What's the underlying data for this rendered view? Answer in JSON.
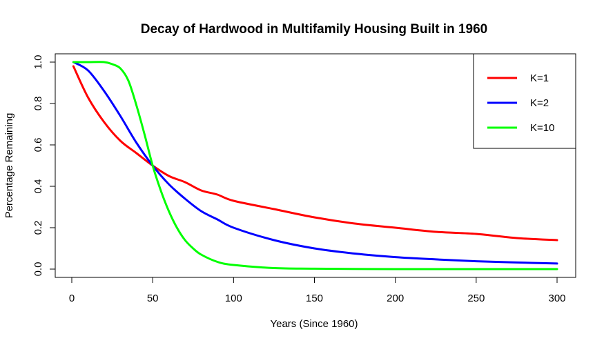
{
  "chart_data": {
    "type": "line",
    "title": "Decay of Hardwood in Multifamily Housing Built in 1960",
    "xlabel": "Years (Since 1960)",
    "ylabel": "Percentage Remaining",
    "xlim": [
      0,
      300
    ],
    "ylim": [
      0,
      1.0
    ],
    "x_ticks": [
      "0",
      "50",
      "100",
      "150",
      "200",
      "250",
      "300"
    ],
    "y_ticks": [
      "0.0",
      "0.2",
      "0.4",
      "0.6",
      "0.8",
      "1.0"
    ],
    "grid": false,
    "legend_position": "top-right",
    "series": [
      {
        "name": "K=1",
        "color": "#ff0000",
        "x": [
          1,
          10,
          20,
          30,
          40,
          50,
          60,
          70,
          80,
          90,
          100,
          125,
          150,
          175,
          200,
          225,
          250,
          275,
          300
        ],
        "y": [
          0.98,
          0.83,
          0.71,
          0.62,
          0.56,
          0.5,
          0.45,
          0.42,
          0.38,
          0.36,
          0.33,
          0.29,
          0.25,
          0.22,
          0.2,
          0.18,
          0.17,
          0.15,
          0.14
        ]
      },
      {
        "name": "K=2",
        "color": "#0000ff",
        "x": [
          1,
          10,
          20,
          30,
          40,
          50,
          60,
          70,
          80,
          90,
          100,
          125,
          150,
          175,
          200,
          225,
          250,
          275,
          300
        ],
        "y": [
          1.0,
          0.96,
          0.86,
          0.74,
          0.61,
          0.5,
          0.41,
          0.34,
          0.28,
          0.24,
          0.2,
          0.14,
          0.1,
          0.075,
          0.058,
          0.047,
          0.038,
          0.032,
          0.027
        ]
      },
      {
        "name": "K=10",
        "color": "#00ff00",
        "x": [
          1,
          10,
          20,
          25,
          30,
          35,
          40,
          45,
          50,
          55,
          60,
          65,
          70,
          75,
          80,
          90,
          100,
          125,
          150,
          200,
          250,
          300
        ],
        "y": [
          1.0,
          1.0,
          1.0,
          0.99,
          0.97,
          0.91,
          0.79,
          0.65,
          0.5,
          0.38,
          0.28,
          0.2,
          0.14,
          0.1,
          0.07,
          0.035,
          0.02,
          0.005,
          0.002,
          0.0,
          0.0,
          0.0
        ]
      }
    ]
  }
}
